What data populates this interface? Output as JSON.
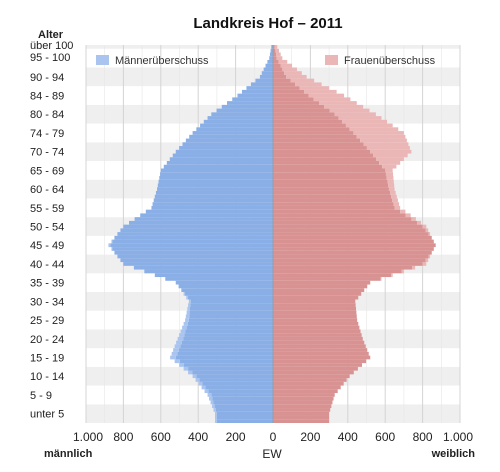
{
  "chart_data": {
    "type": "bar",
    "orientation": "horizontal-population-pyramid",
    "title": "Landkreis Hof – 2011",
    "y_axis_title": "Alter",
    "x_center_label": "EW",
    "x_left_label": "männlich",
    "x_right_label": "weiblich",
    "x_ticks": [
      "1.000",
      "800",
      "600",
      "400",
      "200",
      "0",
      "200",
      "400",
      "600",
      "800",
      "1.000"
    ],
    "xlim": [
      -1000,
      1000
    ],
    "grid": true,
    "age_group_labels": [
      "unter 5",
      "5 - 9",
      "10 - 14",
      "15 - 19",
      "20 - 24",
      "25 - 29",
      "30 - 34",
      "35 - 39",
      "40 - 44",
      "45 - 49",
      "50 - 54",
      "55 - 59",
      "60 - 64",
      "65 - 69",
      "70 - 74",
      "74 - 79",
      "80 - 84",
      "84 - 89",
      "90 - 94",
      "95 - 100",
      "über 100"
    ],
    "ages": [
      0,
      5,
      10,
      15,
      20,
      25,
      30,
      35,
      40,
      45,
      50,
      55,
      60,
      65,
      70,
      75,
      80,
      85,
      90,
      95,
      100
    ],
    "male": [
      310,
      350,
      430,
      550,
      510,
      470,
      450,
      520,
      800,
      880,
      800,
      650,
      620,
      600,
      520,
      430,
      330,
      190,
      70,
      20,
      2
    ],
    "female": [
      300,
      330,
      410,
      520,
      480,
      450,
      440,
      520,
      820,
      870,
      820,
      680,
      650,
      640,
      740,
      700,
      550,
      380,
      180,
      50,
      5
    ],
    "legend": [
      {
        "label": "Männerüberschuss",
        "color": "#a9c4ee",
        "position": "top-left"
      },
      {
        "label": "Frauenüberschuss",
        "color": "#eab6b6",
        "position": "top-right"
      }
    ],
    "colors": {
      "male": "#8aaee6",
      "female": "#d99292",
      "male_excess": "#a9c4ee",
      "female_excess": "#eab6b6"
    }
  }
}
